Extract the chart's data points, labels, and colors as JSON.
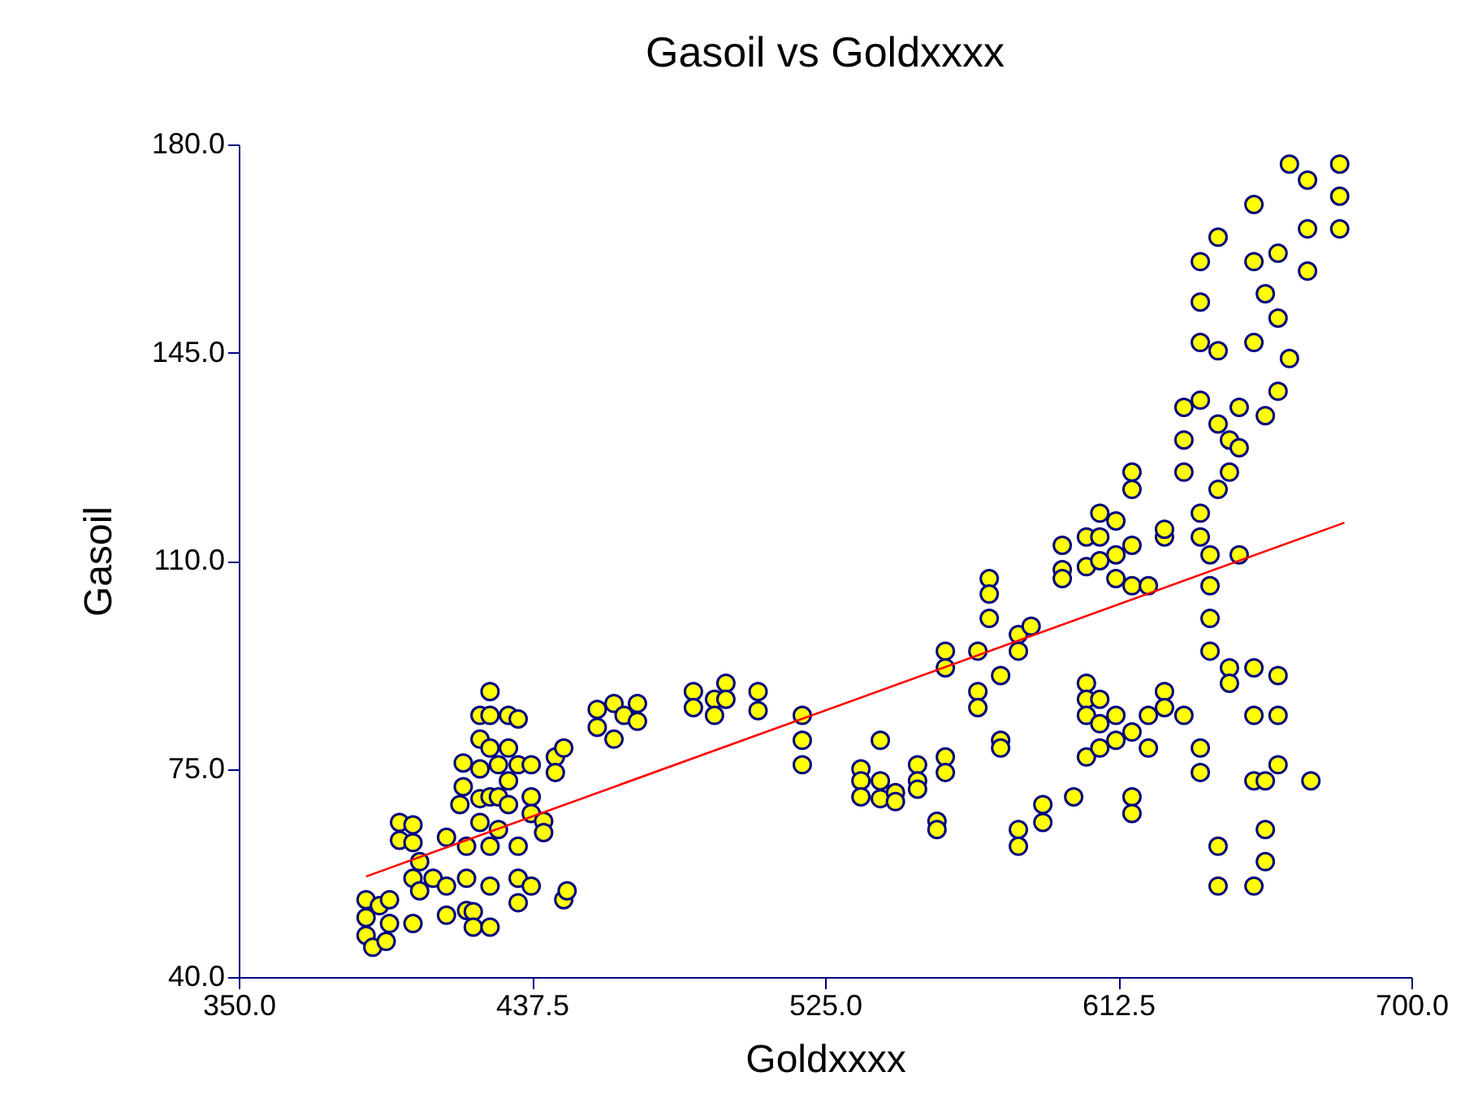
{
  "chart_data": {
    "type": "scatter",
    "title": "Gasoil vs Goldxxxx",
    "xlabel": "Goldxxxx",
    "ylabel": "Gasoil",
    "xlim": [
      350,
      700
    ],
    "xticks": [
      {
        "value": 350,
        "label": "350.0"
      },
      {
        "value": 437.5,
        "label": "437.5"
      },
      {
        "value": 525,
        "label": "525.0"
      },
      {
        "value": 612.5,
        "label": "612.5"
      },
      {
        "value": 700,
        "label": "700.0"
      }
    ],
    "ylim": [
      40,
      180
    ],
    "yticks": [
      {
        "value": 40,
        "label": "40.0"
      },
      {
        "value": 75,
        "label": "75.0"
      },
      {
        "value": 110,
        "label": "110.0"
      },
      {
        "value": 145,
        "label": "145.0"
      },
      {
        "value": 180,
        "label": "180.0"
      }
    ],
    "marker": "circle",
    "grid": false,
    "series": [
      {
        "color": "#ffff00",
        "x": [
          388,
          388,
          388,
          390,
          392,
          395,
          395,
          394,
          398,
          398,
          402,
          402,
          402,
          402,
          404,
          404,
          408,
          412,
          412,
          412,
          418,
          418,
          418,
          417,
          417,
          416,
          420,
          420,
          422,
          422,
          422,
          422,
          422,
          425,
          425,
          425,
          425,
          425,
          425,
          425,
          427.5,
          427.5,
          427.5,
          430.5,
          430.5,
          430.5,
          430.5,
          433.4,
          433.4,
          433.4,
          433.4,
          433.4,
          437.3,
          437.3,
          437.3,
          437.3,
          441,
          441,
          444.5,
          444.5,
          447,
          447,
          448,
          457,
          457,
          462,
          462,
          465,
          469,
          469,
          485.7,
          485.7,
          492,
          492,
          495.4,
          495.4,
          505,
          505,
          518.2,
          518.2,
          518.2,
          535.7,
          535.7,
          535.7,
          541.5,
          541.5,
          541.5,
          546,
          546,
          552.6,
          552.6,
          552.6,
          560.9,
          560.9,
          558.4,
          558.4,
          560.9,
          560.9,
          570.6,
          570.6,
          570.6,
          574,
          574,
          574,
          577.4,
          577.4,
          577.4,
          582.7,
          582.7,
          586.5,
          582.7,
          582.7,
          590,
          590,
          599.2,
          595.8,
          595.8,
          595.8,
          603,
          603,
          603,
          603,
          603,
          603,
          607,
          607,
          607,
          607,
          607,
          607,
          611.8,
          611.8,
          611.8,
          611.8,
          611.8,
          616.6,
          616.6,
          616.6,
          616.6,
          616.6,
          616.6,
          616.6,
          621.5,
          621.5,
          621.5,
          626.3,
          626.3,
          626.3,
          626.3,
          632.1,
          632.1,
          632.1,
          632.1,
          637,
          637,
          637,
          637,
          637,
          637,
          637,
          637,
          639.9,
          639.9,
          639.9,
          639.9,
          642.3,
          642.3,
          642.3,
          642.3,
          642.3,
          642.3,
          645.7,
          645.7,
          645.7,
          645.7,
          648.6,
          648.6,
          648.6,
          653,
          653,
          653,
          653,
          653,
          653,
          653,
          656.4,
          656.4,
          656.4,
          656.4,
          656.4,
          660.2,
          660.2,
          660.2,
          660.2,
          660.2,
          660.2,
          663.6,
          663.6,
          669,
          669,
          669,
          670,
          678.6,
          678.6,
          678.6
        ],
        "values": [
          53,
          50,
          47,
          45,
          52,
          53,
          49,
          46,
          66,
          63,
          65.6,
          62.6,
          56.6,
          49,
          59.4,
          54.5,
          56.6,
          63.5,
          55.3,
          50.4,
          62,
          56.6,
          51.2,
          76,
          72,
          69,
          51,
          48.4,
          84,
          80,
          75,
          70,
          66,
          88,
          84,
          78.5,
          70.3,
          62,
          55.3,
          48.4,
          75.7,
          70.3,
          64.8,
          84,
          78.5,
          73,
          69,
          83.4,
          75.7,
          62,
          56.6,
          52.5,
          75.7,
          70.3,
          67.5,
          55.3,
          66.2,
          64.3,
          77,
          74.4,
          78.5,
          53,
          54.5,
          85,
          82,
          86,
          80,
          84,
          86,
          83,
          88,
          85.3,
          86.7,
          84,
          89.4,
          86.7,
          88,
          84.8,
          84,
          79.8,
          75.7,
          75,
          73,
          70.3,
          73,
          79.8,
          70,
          71,
          69.5,
          75.7,
          73,
          71.6,
          77,
          74.4,
          66.2,
          64.8,
          94.8,
          92,
          94.8,
          88,
          85.3,
          107,
          104.4,
          100.3,
          90.7,
          79.8,
          78.5,
          97.6,
          94.8,
          99,
          64.8,
          62,
          69,
          66,
          70.3,
          112.6,
          108.5,
          107,
          114,
          109,
          89.4,
          86.7,
          84,
          77,
          118,
          114,
          110,
          86.7,
          82.6,
          78.5,
          116.7,
          111,
          107,
          84,
          79.8,
          124.9,
          122,
          112.6,
          105.8,
          81.2,
          70.3,
          67.5,
          105.8,
          84,
          78.5,
          114,
          115.3,
          88,
          85.3,
          124.9,
          130.3,
          84,
          135.8,
          160.3,
          153.5,
          146.7,
          137,
          118,
          114,
          78.5,
          74.4,
          105.8,
          111,
          100.3,
          94.8,
          164.4,
          145.3,
          133,
          122,
          62,
          55.3,
          130.3,
          124.9,
          92,
          89.4,
          111,
          135.8,
          129,
          169.9,
          160.3,
          146.7,
          92,
          84,
          73,
          55.3,
          154.9,
          134.4,
          73,
          64.8,
          59.4,
          161.7,
          150.8,
          138.5,
          90.7,
          84,
          75.7,
          144,
          176.7,
          174,
          165.8,
          158.7,
          73,
          176.7,
          171.3,
          165.8
        ]
      },
      {
        "type": "line",
        "marker": "none",
        "color": "#ff0000",
        "x": [
          388,
          680
        ],
        "values": [
          56.9,
          116.4
        ]
      }
    ]
  }
}
